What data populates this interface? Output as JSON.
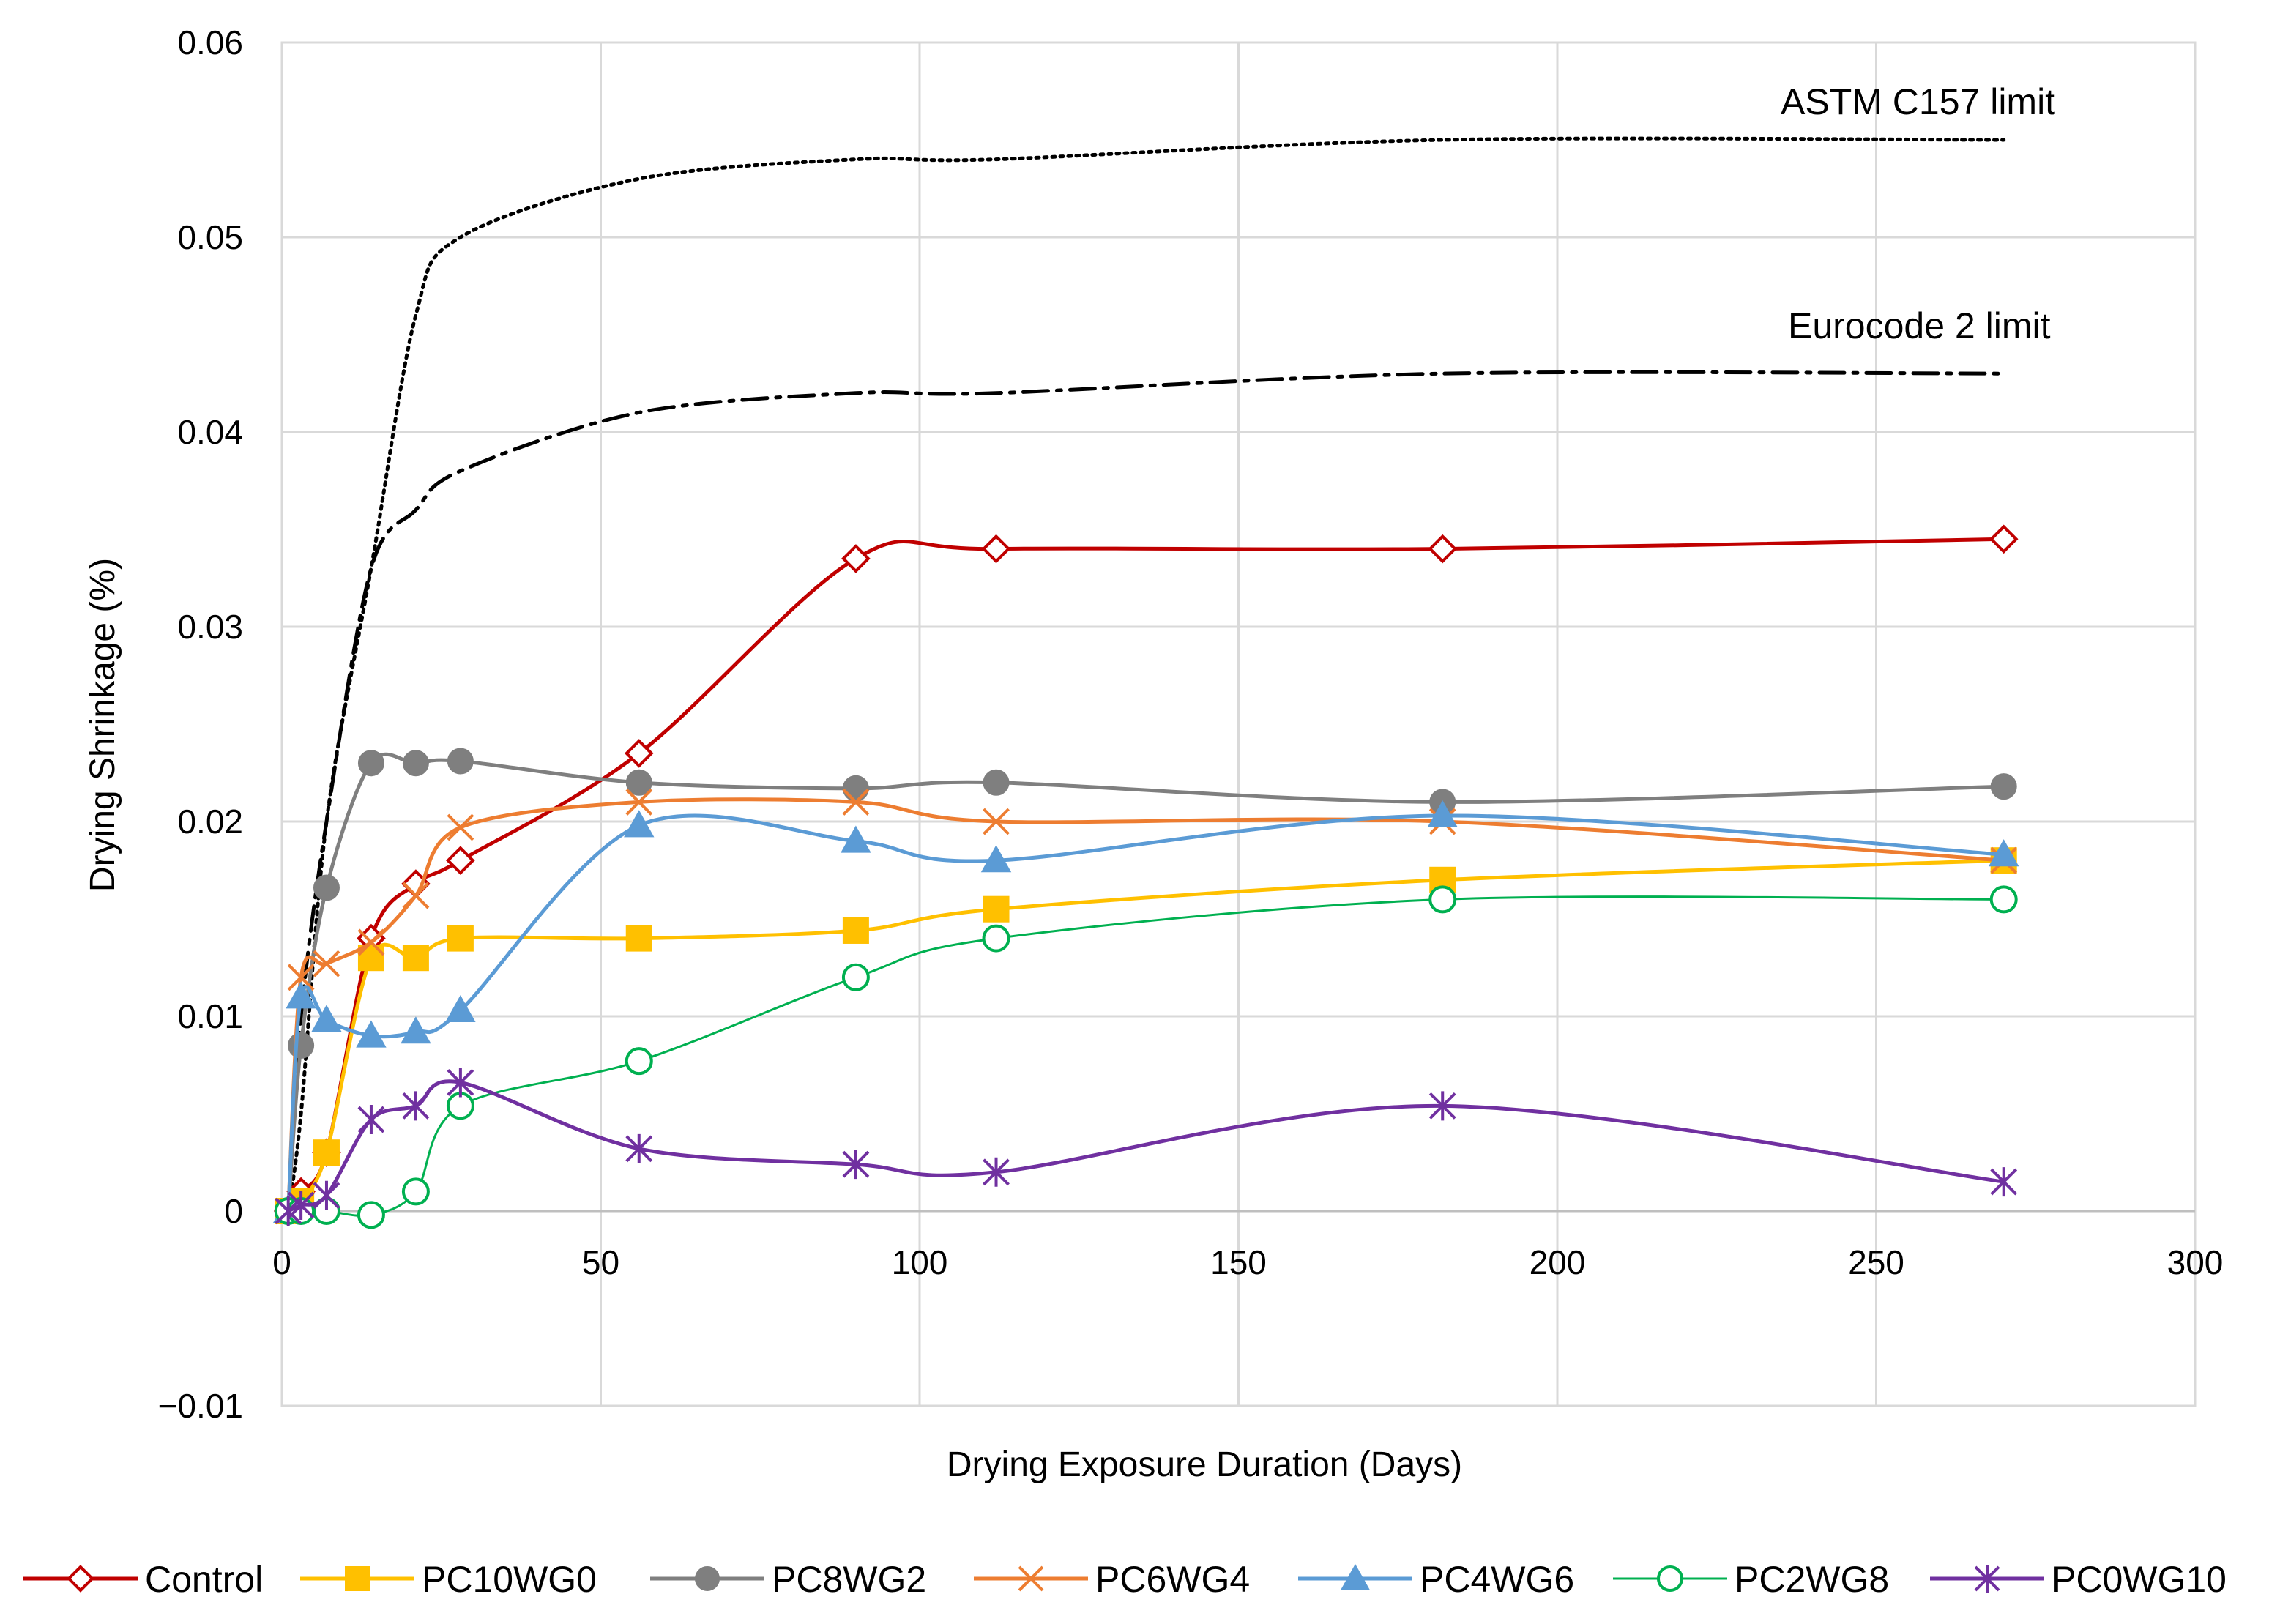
{
  "chart_data": {
    "type": "line",
    "title": "",
    "xlabel": "Drying Exposure Duration (Days)",
    "ylabel": "Drying Shrinkage (%)",
    "xlim": [
      0,
      300
    ],
    "ylim": [
      -0.01,
      0.06
    ],
    "xticks": [
      0,
      50,
      100,
      150,
      200,
      250,
      300
    ],
    "yticks": [
      -0.01,
      0,
      0.01,
      0.02,
      0.03,
      0.04,
      0.05,
      0.06
    ],
    "xtick_labels": [
      "0",
      "50",
      "100",
      "150",
      "200",
      "250",
      "300"
    ],
    "ytick_labels": [
      "−0.01",
      "0",
      "0.01",
      "0.02",
      "0.03",
      "0.04",
      "0.05",
      "0.06"
    ],
    "grid": true,
    "legend_position": "bottom",
    "limits": [
      {
        "name": "ASTM C157 limit",
        "style": "dotted",
        "color": "#000000",
        "x": [
          1,
          3,
          7,
          14,
          21,
          28,
          56,
          90,
          112,
          182,
          270
        ],
        "y": [
          0,
          0.005,
          0.02,
          0.033,
          0.046,
          0.05,
          0.053,
          0.054,
          0.054,
          0.055,
          0.055
        ]
      },
      {
        "name": "Eurocode 2 limit",
        "style": "dashdot",
        "color": "#000000",
        "x": [
          1,
          3,
          7,
          14,
          21,
          28,
          56,
          90,
          112,
          182,
          270
        ],
        "y": [
          0,
          0.01,
          0.02,
          0.033,
          0.036,
          0.038,
          0.041,
          0.042,
          0.042,
          0.043,
          0.043
        ]
      }
    ],
    "series": [
      {
        "name": "Control",
        "color": "#c00000",
        "marker": "diamond-open",
        "x": [
          1,
          3,
          7,
          14,
          21,
          28,
          56,
          90,
          112,
          182,
          270
        ],
        "y": [
          0,
          0.001,
          0.003,
          0.014,
          0.0168,
          0.018,
          0.0235,
          0.0335,
          0.034,
          0.034,
          0.0345
        ]
      },
      {
        "name": "PC10WG0",
        "color": "#ffc000",
        "marker": "square-filled",
        "x": [
          1,
          3,
          7,
          14,
          21,
          28,
          56,
          90,
          112,
          182,
          270
        ],
        "y": [
          0,
          0.0005,
          0.003,
          0.013,
          0.013,
          0.014,
          0.014,
          0.0144,
          0.0155,
          0.017,
          0.018
        ]
      },
      {
        "name": "PC8WG2",
        "color": "#7f7f7f",
        "marker": "circle-filled",
        "x": [
          1,
          3,
          7,
          14,
          21,
          28,
          56,
          90,
          112,
          182,
          270
        ],
        "y": [
          0,
          0.0085,
          0.0166,
          0.023,
          0.023,
          0.0231,
          0.022,
          0.0217,
          0.022,
          0.021,
          0.0218
        ]
      },
      {
        "name": "PC6WG4",
        "color": "#ed7d31",
        "marker": "x",
        "x": [
          1,
          3,
          7,
          14,
          21,
          28,
          56,
          90,
          112,
          182,
          270
        ],
        "y": [
          0,
          0.012,
          0.0127,
          0.0138,
          0.0162,
          0.0197,
          0.021,
          0.021,
          0.02,
          0.02,
          0.018
        ]
      },
      {
        "name": "PC4WG6",
        "color": "#5b9bd5",
        "marker": "triangle-filled",
        "x": [
          1,
          3,
          7,
          14,
          21,
          28,
          56,
          90,
          112,
          182,
          270
        ],
        "y": [
          0,
          0.011,
          0.0098,
          0.009,
          0.0092,
          0.0103,
          0.0198,
          0.019,
          0.018,
          0.0203,
          0.0183
        ]
      },
      {
        "name": "PC2WG8",
        "color": "#00b050",
        "marker": "circle-open",
        "x": [
          1,
          3,
          7,
          14,
          21,
          28,
          56,
          90,
          112,
          182,
          270
        ],
        "y": [
          0,
          0,
          0,
          -0.0002,
          0.001,
          0.0054,
          0.0077,
          0.012,
          0.014,
          0.016,
          0.016
        ]
      },
      {
        "name": "PC0WG10",
        "color": "#7030a0",
        "marker": "star",
        "x": [
          1,
          3,
          7,
          14,
          21,
          28,
          56,
          90,
          112,
          182,
          270
        ],
        "y": [
          0,
          0.0003,
          0.0008,
          0.0047,
          0.0054,
          0.0066,
          0.0032,
          0.0024,
          0.002,
          0.0054,
          0.0015
        ]
      }
    ]
  }
}
